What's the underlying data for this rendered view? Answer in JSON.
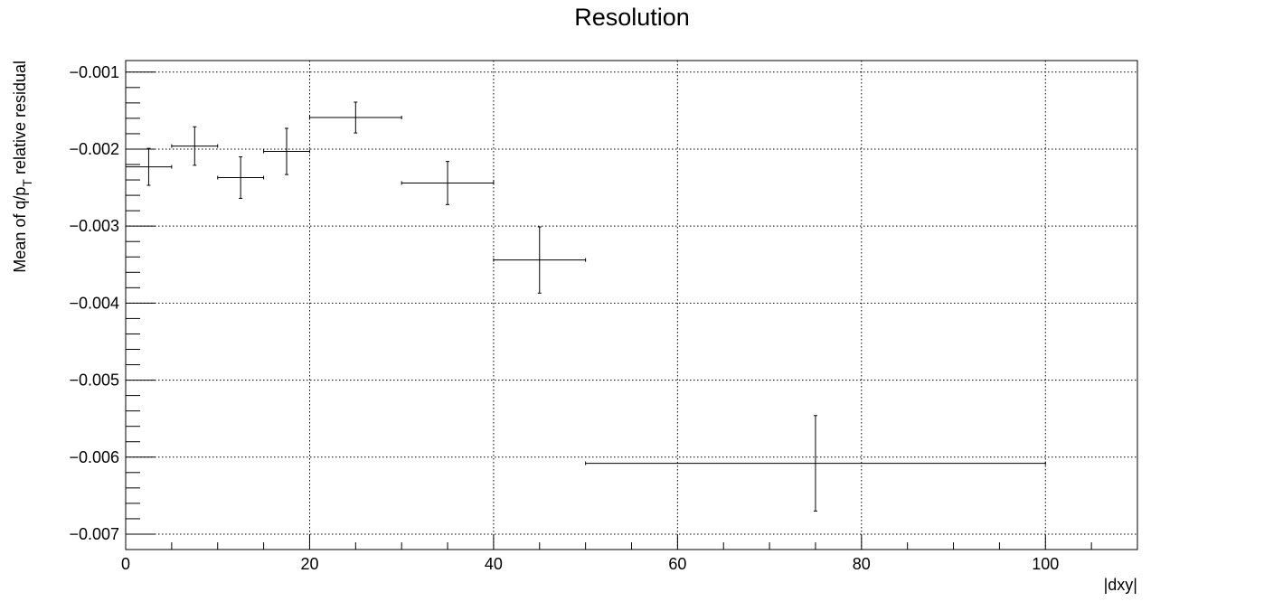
{
  "chart_data": {
    "type": "scatter",
    "title": "Resolution",
    "xlabel": "|dxy|",
    "ylabel_main": "Mean of q/p",
    "ylabel_sub": "T",
    "ylabel_rest": " relative residual",
    "xlim": [
      0,
      110
    ],
    "ylim": [
      -0.0072,
      -0.00085
    ],
    "x_ticks": [
      0,
      20,
      40,
      60,
      80,
      100
    ],
    "x_tick_labels": [
      "0",
      "20",
      "40",
      "60",
      "80",
      "100"
    ],
    "y_ticks": [
      -0.001,
      -0.002,
      -0.003,
      -0.004,
      -0.005,
      -0.006,
      -0.007
    ],
    "y_tick_labels": [
      "−0.001",
      "−0.002",
      "−0.003",
      "−0.004",
      "−0.005",
      "−0.006",
      "−0.007"
    ],
    "grid": true,
    "points": [
      {
        "x": 2.5,
        "xerr": 2.5,
        "y": -0.00223,
        "yerr": 0.00024
      },
      {
        "x": 7.5,
        "xerr": 2.5,
        "y": -0.00196,
        "yerr": 0.00025
      },
      {
        "x": 12.5,
        "xerr": 2.5,
        "y": -0.00237,
        "yerr": 0.00027
      },
      {
        "x": 17.5,
        "xerr": 2.5,
        "y": -0.00203,
        "yerr": 0.0003
      },
      {
        "x": 25,
        "xerr": 5,
        "y": -0.00159,
        "yerr": 0.0002
      },
      {
        "x": 35,
        "xerr": 5,
        "y": -0.00244,
        "yerr": 0.00028
      },
      {
        "x": 45,
        "xerr": 5,
        "y": -0.00344,
        "yerr": 0.00043
      },
      {
        "x": 75,
        "xerr": 25,
        "y": -0.00608,
        "yerr": 0.00062
      }
    ]
  }
}
